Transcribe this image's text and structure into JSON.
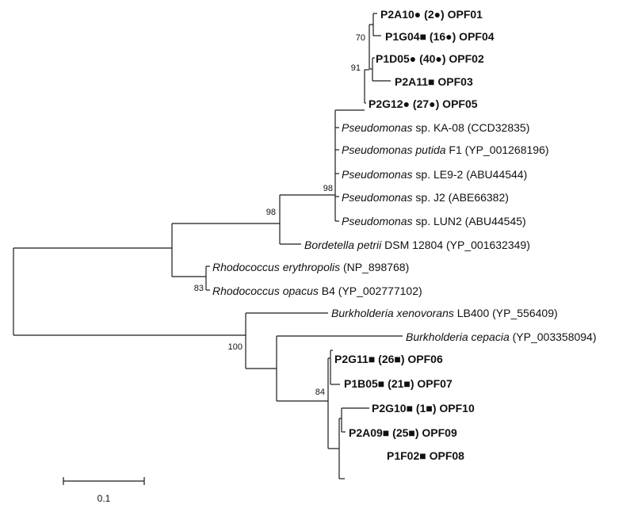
{
  "leaves": [
    {
      "id": "l1",
      "bold": true,
      "parts": [
        {
          "t": "P2A10● (2●) OPF01"
        }
      ]
    },
    {
      "id": "l2",
      "bold": true,
      "parts": [
        {
          "t": "P1G04■ (16●) OPF04"
        }
      ]
    },
    {
      "id": "l3",
      "bold": true,
      "parts": [
        {
          "t": "P1D05● (40●) OPF02"
        }
      ]
    },
    {
      "id": "l4",
      "bold": true,
      "parts": [
        {
          "t": "P2A11■ OPF03"
        }
      ]
    },
    {
      "id": "l5",
      "bold": true,
      "parts": [
        {
          "t": "P2G12● (27●) OPF05"
        }
      ]
    },
    {
      "id": "l6",
      "bold": false,
      "parts": [
        {
          "t": "Pseudomonas",
          "i": true
        },
        {
          "t": " sp. KA-08 (CCD32835)"
        }
      ]
    },
    {
      "id": "l7",
      "bold": false,
      "parts": [
        {
          "t": "Pseudomonas putida",
          "i": true
        },
        {
          "t": " F1 (YP_001268196)"
        }
      ]
    },
    {
      "id": "l8",
      "bold": false,
      "parts": [
        {
          "t": "Pseudomonas",
          "i": true
        },
        {
          "t": " sp. LE9-2 (ABU44544)"
        }
      ]
    },
    {
      "id": "l9",
      "bold": false,
      "parts": [
        {
          "t": "Pseudomonas",
          "i": true
        },
        {
          "t": " sp. J2 (ABE66382)"
        }
      ]
    },
    {
      "id": "l10",
      "bold": false,
      "parts": [
        {
          "t": "Pseudomonas",
          "i": true
        },
        {
          "t": " sp. LUN2 (ABU44545)"
        }
      ]
    },
    {
      "id": "l11",
      "bold": false,
      "parts": [
        {
          "t": "Bordetella petrii",
          "i": true
        },
        {
          "t": " DSM 12804 (YP_001632349)"
        }
      ]
    },
    {
      "id": "l12",
      "bold": false,
      "parts": [
        {
          "t": "Rhodococcus erythropolis",
          "i": true
        },
        {
          "t": " (NP_898768)"
        }
      ]
    },
    {
      "id": "l13",
      "bold": false,
      "parts": [
        {
          "t": "Rhodococcus opacus",
          "i": true
        },
        {
          "t": " B4 (YP_002777102)"
        }
      ]
    },
    {
      "id": "l14",
      "bold": false,
      "parts": [
        {
          "t": "Burkholderia xenovorans",
          "i": true
        },
        {
          "t": " LB400 (YP_556409)"
        }
      ]
    },
    {
      "id": "l15",
      "bold": false,
      "parts": [
        {
          "t": "Burkholderia cepacia",
          "i": true
        },
        {
          "t": " (YP_003358094)"
        }
      ]
    },
    {
      "id": "l16",
      "bold": true,
      "parts": [
        {
          "t": "P2G11■ (26■) OPF06"
        }
      ]
    },
    {
      "id": "l17",
      "bold": true,
      "parts": [
        {
          "t": "P1B05■ (21■) OPF07"
        }
      ]
    },
    {
      "id": "l18",
      "bold": true,
      "parts": [
        {
          "t": "P2G10■ (1■) OPF10"
        }
      ]
    },
    {
      "id": "l19",
      "bold": true,
      "parts": [
        {
          "t": "P2A09■ (25■) OPF09"
        }
      ]
    },
    {
      "id": "l20",
      "bold": true,
      "parts": [
        {
          "t": "P1F02■ OPF08"
        }
      ]
    }
  ],
  "support_values": [
    {
      "id": "s70",
      "value": "70"
    },
    {
      "id": "s91",
      "value": "91"
    },
    {
      "id": "s98a",
      "value": "98"
    },
    {
      "id": "s98b",
      "value": "98"
    },
    {
      "id": "s83",
      "value": "83"
    },
    {
      "id": "s100",
      "value": "100"
    },
    {
      "id": "s84",
      "value": "84"
    }
  ],
  "scale_bar": {
    "label": "0.1",
    "length": 0.1
  }
}
